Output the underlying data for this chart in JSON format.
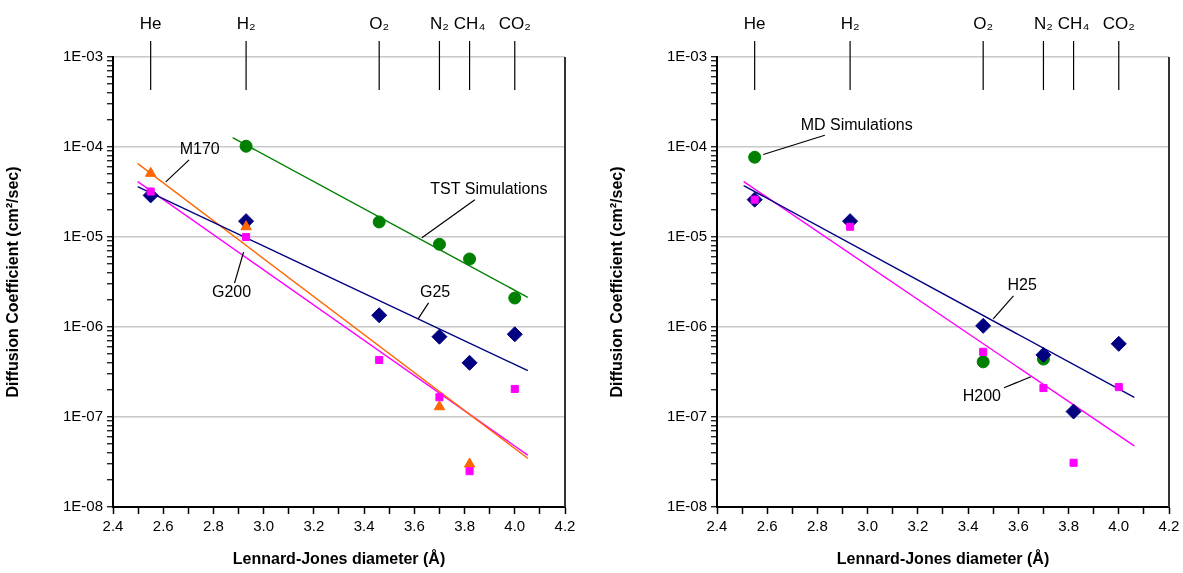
{
  "chart_data": [
    {
      "type": "scatter",
      "xlabel": "Lennard-Jones diameter (Å)",
      "ylabel": "Diffusion Coefficient (cm²/sec)",
      "log": "y",
      "grid": "y",
      "x": [
        2.55,
        2.93,
        3.46,
        3.7,
        3.82,
        4.0
      ],
      "xlim": [
        2.4,
        4.2
      ],
      "xticks": [
        2.4,
        {
          "value": 2.5,
          "label": null
        },
        2.6,
        {
          "value": 2.7,
          "label": null
        },
        2.8,
        {
          "value": 2.9,
          "label": null
        },
        {
          "value": 3.0,
          "label": "3.0"
        },
        {
          "value": 3.1,
          "label": null
        },
        3.2,
        {
          "value": 3.3,
          "label": null
        },
        3.4,
        {
          "value": 3.5,
          "label": null
        },
        3.6,
        {
          "value": 3.7,
          "label": null
        },
        3.8,
        {
          "value": 3.9,
          "label": null
        },
        {
          "value": 4.0,
          "label": "4.0"
        },
        {
          "value": 4.1,
          "label": null
        },
        4.2
      ],
      "ylim": [
        1e-08,
        0.001
      ],
      "yticks": [
        {
          "value": 1e-08,
          "label": "1E-08"
        },
        {
          "value": 2e-08,
          "label": null
        },
        {
          "value": 3e-08,
          "label": null
        },
        {
          "value": 4e-08,
          "label": null
        },
        {
          "value": 5e-08,
          "label": null
        },
        {
          "value": 6e-08,
          "label": null
        },
        {
          "value": 7e-08,
          "label": null
        },
        {
          "value": 8e-08,
          "label": null
        },
        {
          "value": 9e-08,
          "label": null
        },
        {
          "value": 1e-07,
          "label": "1E-07"
        },
        {
          "value": 2e-07,
          "label": null
        },
        {
          "value": 3e-07,
          "label": null
        },
        {
          "value": 4e-07,
          "label": null
        },
        {
          "value": 5e-07,
          "label": null
        },
        {
          "value": 6e-07,
          "label": null
        },
        {
          "value": 7e-07,
          "label": null
        },
        {
          "value": 8e-07,
          "label": null
        },
        {
          "value": 9e-07,
          "label": null
        },
        {
          "value": 1e-06,
          "label": "1E-06"
        },
        {
          "value": 2e-06,
          "label": null
        },
        {
          "value": 3e-06,
          "label": null
        },
        {
          "value": 4e-06,
          "label": null
        },
        {
          "value": 5e-06,
          "label": null
        },
        {
          "value": 6e-06,
          "label": null
        },
        {
          "value": 7e-06,
          "label": null
        },
        {
          "value": 8e-06,
          "label": null
        },
        {
          "value": 9e-06,
          "label": null
        },
        {
          "value": 1e-05,
          "label": "1E-05"
        },
        {
          "value": 2e-05,
          "label": null
        },
        {
          "value": 3e-05,
          "label": null
        },
        {
          "value": 4e-05,
          "label": null
        },
        {
          "value": 5e-05,
          "label": null
        },
        {
          "value": 6e-05,
          "label": null
        },
        {
          "value": 7e-05,
          "label": null
        },
        {
          "value": 8e-05,
          "label": null
        },
        {
          "value": 9e-05,
          "label": null
        },
        {
          "value": 0.0001,
          "label": "1E-04"
        },
        {
          "value": 0.0002,
          "label": null
        },
        {
          "value": 0.0003,
          "label": null
        },
        {
          "value": 0.0004,
          "label": null
        },
        {
          "value": 0.0005,
          "label": null
        },
        {
          "value": 0.0006,
          "label": null
        },
        {
          "value": 0.0007,
          "label": null
        },
        {
          "value": 0.0008,
          "label": null
        },
        {
          "value": 0.0009,
          "label": null
        },
        {
          "value": 0.001,
          "label": "1E-03"
        }
      ],
      "series": [
        {
          "color": "#ff00ff",
          "marker": "square",
          "values": [
            3.2e-05,
            1e-05,
            4.3e-07,
            1.66e-07,
            2.5e-08,
            2.05e-07
          ]
        },
        {
          "color": "#ff6600",
          "marker": "triangle",
          "values": [
            5.1e-05,
            1.3e-05,
            null,
            1.3e-07,
            3e-08,
            null
          ]
        },
        {
          "color": "#000080",
          "marker": "diamond",
          "values": [
            2.9e-05,
            1.5e-05,
            1.35e-06,
            7.8e-07,
            4e-07,
            8.3e-07
          ]
        },
        {
          "color": "#008000",
          "marker": "circle",
          "values": [
            null,
            0.000102,
            1.47e-05,
            8.3e-06,
            5.7e-06,
            2.1e-06
          ]
        },
        {
          "type": "line",
          "color": "#008000",
          "marker": "none",
          "x": [
            2.878,
            4.05
          ],
          "values": [
            0.000126,
            2.15e-06
          ]
        },
        {
          "type": "line",
          "color": "#000080",
          "marker": "none",
          "x": [
            2.5,
            4.05
          ],
          "values": [
            3.6e-05,
            3.3e-07
          ]
        },
        {
          "type": "line",
          "color": "#ff6600",
          "marker": "none",
          "x": [
            2.5,
            4.05
          ],
          "values": [
            6.5e-05,
            3.5e-08
          ]
        },
        {
          "type": "line",
          "color": "#ff00ff",
          "marker": "none",
          "x": [
            2.5,
            4.05
          ],
          "values": [
            4.1e-05,
            3.8e-08
          ]
        }
      ],
      "annotations": [
        {
          "text": "He",
          "x": 2.55
        },
        {
          "text": "H₂",
          "x": 2.93
        },
        {
          "text": "O₂",
          "x": 3.46
        },
        {
          "text": "N₂",
          "x": 3.7
        },
        {
          "text": "CH₄",
          "x": 3.82
        },
        {
          "text": "CO₂",
          "x": 4.0
        },
        {
          "text": "M170",
          "x": 2.61,
          "y": 4.1e-05
        },
        {
          "text": "TST Simulations",
          "x": 3.63,
          "y": 9.8e-06
        },
        {
          "text": "G200",
          "x": 2.92,
          "y": 6.8e-06
        },
        {
          "text": "G25",
          "x": 3.615,
          "y": 1.23e-06
        }
      ]
    },
    {
      "type": "scatter",
      "xlabel": "Lennard-Jones diameter (Å)",
      "ylabel": "Diffusion Coefficient (cm²/sec)",
      "log": "y",
      "grid": "y",
      "x": [
        2.55,
        2.93,
        3.46,
        3.7,
        3.82,
        4.0
      ],
      "xlim": [
        2.4,
        4.2
      ],
      "xticks": [
        2.4,
        {
          "value": 2.5,
          "label": null
        },
        2.6,
        {
          "value": 2.7,
          "label": null
        },
        2.8,
        {
          "value": 2.9,
          "label": null
        },
        {
          "value": 3.0,
          "label": "3.0"
        },
        {
          "value": 3.1,
          "label": null
        },
        3.2,
        {
          "value": 3.3,
          "label": null
        },
        3.4,
        {
          "value": 3.5,
          "label": null
        },
        3.6,
        {
          "value": 3.7,
          "label": null
        },
        3.8,
        {
          "value": 3.9,
          "label": null
        },
        {
          "value": 4.0,
          "label": "4.0"
        },
        {
          "value": 4.1,
          "label": null
        },
        4.2
      ],
      "ylim": [
        1e-08,
        0.001
      ],
      "yticks": [
        {
          "value": 1e-08,
          "label": "1E-08"
        },
        {
          "value": 2e-08,
          "label": null
        },
        {
          "value": 3e-08,
          "label": null
        },
        {
          "value": 4e-08,
          "label": null
        },
        {
          "value": 5e-08,
          "label": null
        },
        {
          "value": 6e-08,
          "label": null
        },
        {
          "value": 7e-08,
          "label": null
        },
        {
          "value": 8e-08,
          "label": null
        },
        {
          "value": 9e-08,
          "label": null
        },
        {
          "value": 1e-07,
          "label": "1E-07"
        },
        {
          "value": 2e-07,
          "label": null
        },
        {
          "value": 3e-07,
          "label": null
        },
        {
          "value": 4e-07,
          "label": null
        },
        {
          "value": 5e-07,
          "label": null
        },
        {
          "value": 6e-07,
          "label": null
        },
        {
          "value": 7e-07,
          "label": null
        },
        {
          "value": 8e-07,
          "label": null
        },
        {
          "value": 9e-07,
          "label": null
        },
        {
          "value": 1e-06,
          "label": "1E-06"
        },
        {
          "value": 2e-06,
          "label": null
        },
        {
          "value": 3e-06,
          "label": null
        },
        {
          "value": 4e-06,
          "label": null
        },
        {
          "value": 5e-06,
          "label": null
        },
        {
          "value": 6e-06,
          "label": null
        },
        {
          "value": 7e-06,
          "label": null
        },
        {
          "value": 8e-06,
          "label": null
        },
        {
          "value": 9e-06,
          "label": null
        },
        {
          "value": 1e-05,
          "label": "1E-05"
        },
        {
          "value": 2e-05,
          "label": null
        },
        {
          "value": 3e-05,
          "label": null
        },
        {
          "value": 4e-05,
          "label": null
        },
        {
          "value": 5e-05,
          "label": null
        },
        {
          "value": 6e-05,
          "label": null
        },
        {
          "value": 7e-05,
          "label": null
        },
        {
          "value": 8e-05,
          "label": null
        },
        {
          "value": 9e-05,
          "label": null
        },
        {
          "value": 0.0001,
          "label": "1E-04"
        },
        {
          "value": 0.0002,
          "label": null
        },
        {
          "value": 0.0003,
          "label": null
        },
        {
          "value": 0.0004,
          "label": null
        },
        {
          "value": 0.0005,
          "label": null
        },
        {
          "value": 0.0006,
          "label": null
        },
        {
          "value": 0.0007,
          "label": null
        },
        {
          "value": 0.0008,
          "label": null
        },
        {
          "value": 0.0009,
          "label": null
        },
        {
          "value": 0.001,
          "label": "1E-03"
        }
      ],
      "series": [
        {
          "color": "#ff00ff",
          "marker": "square",
          "values": [
            2.6e-05,
            1.3e-05,
            5.3e-07,
            2.1e-07,
            3.1e-08,
            2.15e-07
          ]
        },
        {
          "color": "#000080",
          "marker": "diamond",
          "values": [
            2.6e-05,
            1.5e-05,
            1.03e-06,
            4.9e-07,
            1.15e-07,
            6.5e-07
          ]
        },
        {
          "color": "#008000",
          "marker": "circle",
          "values": [
            7.7e-05,
            null,
            4.1e-07,
            4.4e-07,
            null,
            null
          ]
        },
        {
          "type": "line",
          "color": "#000080",
          "marker": "none",
          "x": [
            2.508,
            4.06
          ],
          "values": [
            3.7e-05,
            1.66e-07
          ]
        },
        {
          "type": "line",
          "color": "#ff00ff",
          "marker": "none",
          "x": [
            2.508,
            4.06
          ],
          "values": [
            4.1e-05,
            4.8e-08
          ]
        }
      ],
      "annotations": [
        {
          "text": "He",
          "x": 2.55
        },
        {
          "text": "H₂",
          "x": 2.93
        },
        {
          "text": "O₂",
          "x": 3.46
        },
        {
          "text": "N₂",
          "x": 3.7
        },
        {
          "text": "CH₄",
          "x": 3.82
        },
        {
          "text": "CO₂",
          "x": 4.0
        },
        {
          "text": "MD Simulations",
          "x": 2.55,
          "y": 7.7e-05
        },
        {
          "text": "H25",
          "x": 3.5,
          "y": 1.23e-06
        },
        {
          "text": "H200",
          "x": 3.65,
          "y": 2.8e-07
        }
      ]
    }
  ]
}
